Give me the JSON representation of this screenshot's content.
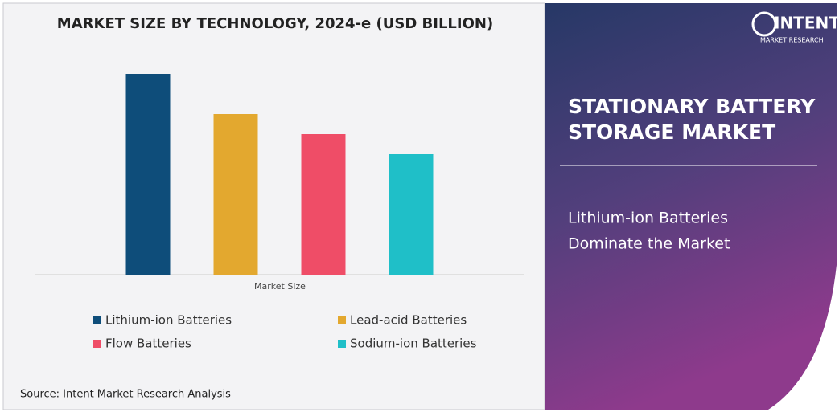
{
  "chart_data": {
    "type": "bar",
    "title": "MARKET SIZE BY TECHNOLOGY, 2024-e (USD BILLION)",
    "categories": [
      "Market Size"
    ],
    "series": [
      {
        "name": "Lithium-ion Batteries",
        "color": "#0e4d7a",
        "values": [
          10
        ]
      },
      {
        "name": "Lead-acid Batteries",
        "color": "#e3a82f",
        "values": [
          8
        ]
      },
      {
        "name": "Flow Batteries",
        "color": "#ef4d67",
        "values": [
          7
        ]
      },
      {
        "name": "Sodium-ion Batteries",
        "color": "#1fbfc8",
        "values": [
          6
        ]
      }
    ],
    "ylim": [
      0,
      10
    ],
    "grid": false,
    "legend": "bottom"
  },
  "source": "Source: Intent Market Research Analysis",
  "logo": {
    "name": "INTENT",
    "tagline": "MARKET RESEARCH"
  },
  "panel": {
    "title": [
      "STATIONARY BATTERY",
      "STORAGE MARKET"
    ],
    "subtitle": [
      "Lithium-ion Batteries",
      "Dominate the Market"
    ]
  }
}
